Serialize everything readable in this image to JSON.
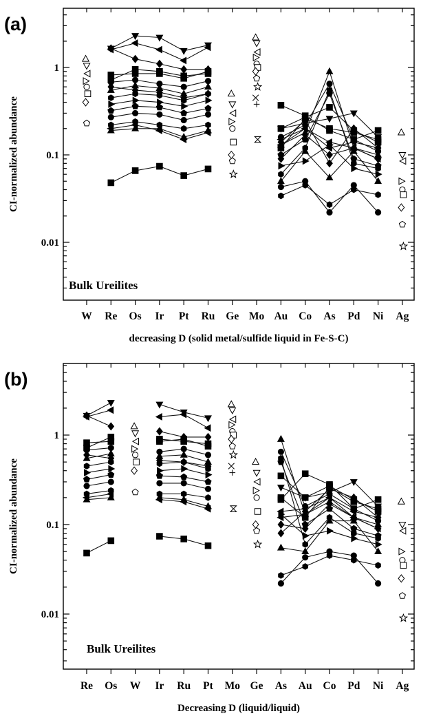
{
  "chart_data": [
    {
      "panel": "(a)",
      "type": "scatter",
      "title": "",
      "xlabel": "decreasing D (solid metal/sulfide liquid in Fe-S-C)",
      "ylabel": "CI-normalized abundance",
      "yscale": "log",
      "ylim": [
        0.0015,
        4.5
      ],
      "yticks": [
        "0.01",
        "0.1",
        "1"
      ],
      "grid": false,
      "annotation": "Bulk Ureilites",
      "categories": [
        "W",
        "Re",
        "Os",
        "Ir",
        "Pt",
        "Ru",
        "Ge",
        "Mo",
        "Au",
        "Co",
        "As",
        "Pd",
        "Ni",
        "Ag"
      ],
      "series": [
        {
          "marker": "filled-square",
          "values": [
            null,
            0.048,
            0.066,
            0.074,
            0.058,
            0.069,
            null,
            null,
            0.37,
            0.28,
            0.19,
            0.15,
            0.19,
            null
          ]
        },
        {
          "marker": "filled-triangle-down",
          "values": [
            null,
            1.65,
            2.3,
            2.2,
            1.55,
            1.8,
            null,
            null,
            0.2,
            0.23,
            0.26,
            0.3,
            0.16,
            null
          ]
        },
        {
          "marker": "filled-triangle-left",
          "values": [
            null,
            1.6,
            1.9,
            1.6,
            1.2,
            1.7,
            null,
            null,
            0.13,
            0.2,
            0.12,
            0.14,
            0.12,
            null
          ]
        },
        {
          "marker": "filled-diamond",
          "values": [
            null,
            1.65,
            1.25,
            1.1,
            0.95,
            0.95,
            null,
            null,
            0.09,
            0.17,
            0.1,
            0.12,
            0.09,
            null
          ]
        },
        {
          "marker": "filled-square",
          "values": [
            null,
            0.82,
            0.85,
            0.85,
            0.75,
            0.9,
            null,
            null,
            0.12,
            0.26,
            0.2,
            0.18,
            0.15,
            null
          ]
        },
        {
          "marker": "filled-circle",
          "values": [
            null,
            0.68,
            0.72,
            0.65,
            0.6,
            0.7,
            null,
            null,
            0.16,
            0.22,
            0.65,
            0.15,
            0.11,
            null
          ]
        },
        {
          "marker": "filled-triangle-up",
          "values": [
            null,
            0.55,
            0.62,
            0.58,
            0.5,
            0.6,
            null,
            null,
            0.13,
            0.18,
            0.9,
            0.12,
            0.1,
            null
          ]
        },
        {
          "marker": "filled-hexagon",
          "values": [
            null,
            0.45,
            0.5,
            0.48,
            0.42,
            0.5,
            null,
            null,
            0.06,
            0.12,
            0.55,
            0.08,
            0.07,
            null
          ]
        },
        {
          "marker": "filled-triangle-right",
          "values": [
            null,
            0.38,
            0.42,
            0.4,
            0.36,
            0.42,
            null,
            null,
            0.075,
            0.085,
            0.13,
            0.07,
            0.06,
            null
          ]
        },
        {
          "marker": "filled-pentagon",
          "values": [
            null,
            0.32,
            0.36,
            0.35,
            0.3,
            0.34,
            null,
            null,
            0.1,
            0.15,
            0.5,
            0.09,
            0.075,
            null
          ]
        },
        {
          "marker": "filled-circle",
          "values": [
            null,
            0.27,
            0.3,
            0.29,
            0.25,
            0.29,
            null,
            null,
            0.043,
            0.05,
            0.022,
            0.045,
            0.022,
            null
          ]
        },
        {
          "marker": "filled-hexagon",
          "values": [
            null,
            0.22,
            0.24,
            0.22,
            0.2,
            0.22,
            null,
            null,
            0.034,
            0.045,
            0.027,
            0.04,
            0.035,
            null
          ]
        },
        {
          "marker": "filled-triangle-up",
          "values": [
            null,
            0.19,
            0.2,
            0.2,
            0.16,
            0.19,
            null,
            null,
            0.05,
            0.11,
            0.055,
            0.11,
            0.05,
            null
          ]
        },
        {
          "marker": "filled-triangle-left",
          "values": [
            null,
            0.2,
            0.22,
            0.19,
            0.15,
            0.18,
            null,
            null,
            0.15,
            0.2,
            0.14,
            0.12,
            0.09,
            null
          ]
        },
        {
          "marker": "filled-diamond",
          "values": [
            null,
            0.6,
            0.55,
            0.52,
            0.45,
            0.5,
            null,
            null,
            0.14,
            0.25,
            0.08,
            0.2,
            0.12,
            null
          ]
        },
        {
          "marker": "filled-square",
          "values": [
            null,
            0.72,
            0.95,
            0.9,
            0.8,
            0.85,
            null,
            null,
            0.2,
            0.27,
            0.35,
            0.19,
            0.14,
            null
          ]
        }
      ],
      "trace_elements": [
        {
          "category": "W",
          "values": [
            1.25,
            1.05,
            0.85,
            0.7,
            0.6,
            0.5,
            0.4,
            0.23
          ]
        },
        {
          "category": "Ge",
          "values": [
            0.5,
            0.38,
            0.3,
            0.24,
            0.2,
            0.14,
            0.1,
            0.085,
            0.06
          ]
        },
        {
          "category": "Mo",
          "values": [
            2.2,
            1.9,
            1.5,
            1.3,
            1.1,
            1.0,
            0.9,
            0.75,
            0.6,
            0.45,
            0.38,
            0.15
          ]
        },
        {
          "category": "Ag",
          "values": [
            0.18,
            0.1,
            0.085,
            0.05,
            0.04,
            0.035,
            0.025,
            0.016,
            0.009
          ]
        }
      ]
    },
    {
      "panel": "(b)",
      "type": "scatter",
      "title": "",
      "xlabel": "Decreasing D (liquid/liquid)",
      "ylabel": "CI-normalized abundance",
      "yscale": "log",
      "ylim": [
        0.0015,
        4.5
      ],
      "yticks": [
        "0.01",
        "0.1",
        "1"
      ],
      "grid": false,
      "annotation": "Bulk Ureilites",
      "categories": [
        "Re",
        "Os",
        "W",
        "Ir",
        "Ru",
        "Pt",
        "Mo",
        "Ge",
        "As",
        "Au",
        "Co",
        "Pd",
        "Ni",
        "Ag"
      ],
      "series": [
        {
          "marker": "filled-square",
          "values": [
            0.048,
            0.066,
            null,
            0.074,
            0.069,
            0.058,
            null,
            null,
            0.19,
            0.37,
            0.28,
            0.15,
            0.19,
            null
          ]
        },
        {
          "marker": "filled-triangle-down",
          "values": [
            1.65,
            2.3,
            null,
            2.2,
            1.8,
            1.55,
            null,
            null,
            0.26,
            0.2,
            0.23,
            0.3,
            0.16,
            null
          ]
        },
        {
          "marker": "filled-triangle-left",
          "values": [
            1.6,
            1.9,
            null,
            1.6,
            1.7,
            1.2,
            null,
            null,
            0.12,
            0.13,
            0.2,
            0.14,
            0.12,
            null
          ]
        },
        {
          "marker": "filled-diamond",
          "values": [
            1.65,
            1.25,
            null,
            1.1,
            0.95,
            0.95,
            null,
            null,
            0.1,
            0.09,
            0.17,
            0.12,
            0.09,
            null
          ]
        },
        {
          "marker": "filled-square",
          "values": [
            0.82,
            0.85,
            null,
            0.85,
            0.9,
            0.75,
            null,
            null,
            0.2,
            0.12,
            0.26,
            0.18,
            0.15,
            null
          ]
        },
        {
          "marker": "filled-circle",
          "values": [
            0.68,
            0.72,
            null,
            0.65,
            0.7,
            0.6,
            null,
            null,
            0.65,
            0.16,
            0.22,
            0.15,
            0.11,
            null
          ]
        },
        {
          "marker": "filled-triangle-up",
          "values": [
            0.55,
            0.62,
            null,
            0.58,
            0.6,
            0.5,
            null,
            null,
            0.9,
            0.13,
            0.18,
            0.12,
            0.1,
            null
          ]
        },
        {
          "marker": "filled-hexagon",
          "values": [
            0.45,
            0.5,
            null,
            0.48,
            0.5,
            0.42,
            null,
            null,
            0.55,
            0.06,
            0.12,
            0.08,
            0.07,
            null
          ]
        },
        {
          "marker": "filled-triangle-right",
          "values": [
            0.38,
            0.42,
            null,
            0.4,
            0.42,
            0.36,
            null,
            null,
            0.13,
            0.075,
            0.085,
            0.07,
            0.06,
            null
          ]
        },
        {
          "marker": "filled-pentagon",
          "values": [
            0.32,
            0.36,
            null,
            0.35,
            0.34,
            0.3,
            null,
            null,
            0.5,
            0.1,
            0.15,
            0.09,
            0.075,
            null
          ]
        },
        {
          "marker": "filled-circle",
          "values": [
            0.27,
            0.3,
            null,
            0.29,
            0.29,
            0.25,
            null,
            null,
            0.022,
            0.043,
            0.05,
            0.045,
            0.022,
            null
          ]
        },
        {
          "marker": "filled-hexagon",
          "values": [
            0.22,
            0.24,
            null,
            0.22,
            0.22,
            0.2,
            null,
            null,
            0.027,
            0.034,
            0.045,
            0.04,
            0.035,
            null
          ]
        },
        {
          "marker": "filled-triangle-up",
          "values": [
            0.19,
            0.2,
            null,
            0.2,
            0.19,
            0.16,
            null,
            null,
            0.055,
            0.05,
            0.11,
            0.11,
            0.05,
            null
          ]
        },
        {
          "marker": "filled-triangle-left",
          "values": [
            0.2,
            0.22,
            null,
            0.19,
            0.18,
            0.15,
            null,
            null,
            0.14,
            0.15,
            0.2,
            0.12,
            0.09,
            null
          ]
        },
        {
          "marker": "filled-diamond",
          "values": [
            0.6,
            0.55,
            null,
            0.52,
            0.5,
            0.45,
            null,
            null,
            0.08,
            0.14,
            0.25,
            0.2,
            0.12,
            null
          ]
        },
        {
          "marker": "filled-square",
          "values": [
            0.72,
            0.95,
            null,
            0.9,
            0.85,
            0.8,
            null,
            null,
            0.35,
            0.2,
            0.27,
            0.19,
            0.14,
            null
          ]
        }
      ],
      "trace_elements": [
        {
          "category": "W",
          "values": [
            1.25,
            1.05,
            0.85,
            0.7,
            0.6,
            0.5,
            0.4,
            0.23
          ]
        },
        {
          "category": "Mo",
          "values": [
            2.2,
            1.9,
            1.5,
            1.3,
            1.1,
            1.0,
            0.9,
            0.75,
            0.6,
            0.45,
            0.38,
            0.15
          ]
        },
        {
          "category": "Ge",
          "values": [
            0.5,
            0.38,
            0.3,
            0.24,
            0.2,
            0.14,
            0.1,
            0.085,
            0.06
          ]
        },
        {
          "category": "Ag",
          "values": [
            0.18,
            0.1,
            0.085,
            0.05,
            0.04,
            0.035,
            0.025,
            0.016,
            0.009
          ]
        }
      ]
    }
  ]
}
